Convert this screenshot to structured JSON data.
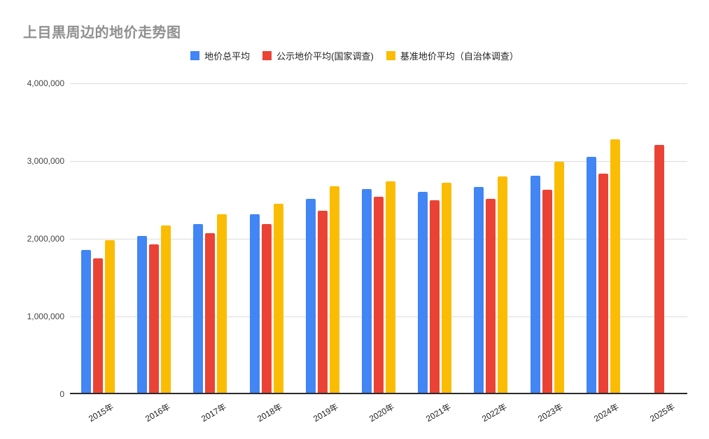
{
  "title": "上目黒周边的地价走势图",
  "colors": {
    "series_blue": "#4285F4",
    "series_red": "#EA4335",
    "series_yellow": "#FBBC04",
    "title_gray": "#8f8f8f",
    "gridline": "#dcdcdc",
    "axis_line": "#2b2b2b",
    "tick_text": "#444444",
    "legend_text": "#222222",
    "background": "#ffffff"
  },
  "chart_data": {
    "type": "bar",
    "title": "上目黒周边的地价走势图",
    "categories": [
      "2015年",
      "2016年",
      "2017年",
      "2018年",
      "2019年",
      "2020年",
      "2021年",
      "2022年",
      "2023年",
      "2024年",
      "2025年"
    ],
    "series": [
      {
        "name": "地价总平均",
        "color": "#4285F4",
        "values": [
          1840000,
          2020000,
          2170000,
          2300000,
          2500000,
          2620000,
          2590000,
          2650000,
          2790000,
          3040000,
          null
        ]
      },
      {
        "name": "公示地价平均(国家调查)",
        "color": "#EA4335",
        "values": [
          1730000,
          1910000,
          2050000,
          2170000,
          2340000,
          2520000,
          2480000,
          2500000,
          2610000,
          2820000,
          3190000
        ]
      },
      {
        "name": "基准地价平均（自治体调查）",
        "color": "#FBBC04",
        "values": [
          1960000,
          2150000,
          2300000,
          2430000,
          2660000,
          2720000,
          2700000,
          2780000,
          2970000,
          3260000,
          null
        ]
      }
    ],
    "xlabel": "",
    "ylabel": "",
    "ylim": [
      0,
      4000000
    ],
    "yticks": [
      4000000,
      3000000,
      2000000,
      1000000,
      0
    ],
    "ytick_labels": [
      "4,000,000",
      "3,000,000",
      "2,000,000",
      "1,000,000",
      "0"
    ],
    "grid": true,
    "legend_position": "top",
    "x_label_rotation_deg": 30
  }
}
